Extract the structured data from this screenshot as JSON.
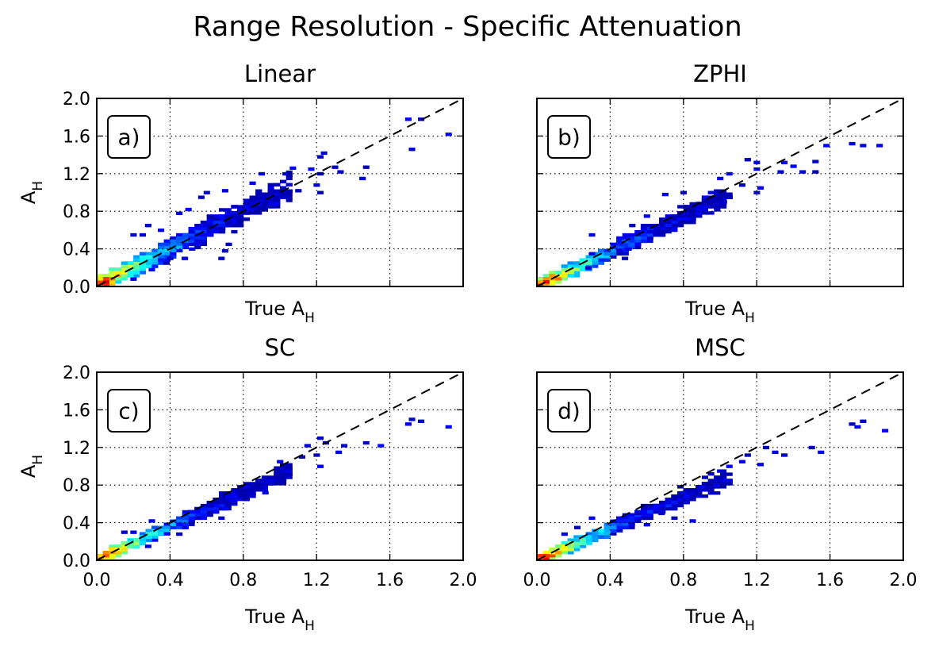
{
  "figure": {
    "suptitle": "Range Resolution - Specific Attenuation"
  },
  "chart_data": [
    {
      "type": "heatmap",
      "title": "Linear",
      "panel_label": "a)",
      "xlabel": "True A",
      "xlabel_sub": "H",
      "ylabel": "A",
      "ylabel_sub": "H",
      "xlim": [
        0,
        2.0
      ],
      "ylim": [
        0,
        2.0
      ],
      "xticks": [
        "0.0",
        "0.4",
        "0.8",
        "1.2",
        "1.6",
        "2.0"
      ],
      "yticks": [
        "0.0",
        "0.4",
        "0.8",
        "1.2",
        "1.6",
        "2.0"
      ],
      "show_xtick_labels": false,
      "show_ytick_labels": true,
      "show_ylabel": true,
      "grid": true,
      "reference_line": "y = x (dashed)",
      "colormap": "jet",
      "core": {
        "slope": 1.0,
        "spread": 0.11
      },
      "outliers": [
        [
          1.7,
          1.78
        ],
        [
          1.77,
          1.78
        ],
        [
          1.92,
          1.62
        ],
        [
          1.72,
          1.46
        ],
        [
          1.24,
          1.42
        ],
        [
          1.22,
          1.38
        ],
        [
          1.3,
          1.27
        ],
        [
          1.33,
          1.22
        ],
        [
          1.47,
          1.27
        ],
        [
          1.45,
          1.15
        ],
        [
          1.22,
          1.2
        ],
        [
          1.17,
          1.25
        ],
        [
          1.07,
          1.26
        ],
        [
          1.03,
          1.2
        ],
        [
          0.9,
          1.2
        ],
        [
          0.85,
          1.1
        ],
        [
          0.95,
          1.05
        ],
        [
          1.1,
          1.02
        ],
        [
          1.22,
          1.0
        ],
        [
          1.2,
          1.08
        ],
        [
          0.7,
          1.02
        ],
        [
          0.57,
          0.95
        ],
        [
          0.6,
          1.0
        ],
        [
          0.5,
          0.82
        ],
        [
          0.45,
          0.78
        ],
        [
          0.28,
          0.65
        ],
        [
          0.25,
          0.55
        ],
        [
          0.2,
          0.55
        ],
        [
          0.62,
          0.55
        ],
        [
          0.7,
          0.38
        ],
        [
          0.68,
          0.3
        ],
        [
          0.52,
          0.4
        ],
        [
          0.48,
          0.3
        ],
        [
          0.4,
          0.3
        ],
        [
          0.38,
          0.25
        ],
        [
          0.3,
          0.18
        ],
        [
          0.2,
          0.08
        ],
        [
          0.35,
          0.6
        ],
        [
          0.72,
          0.45
        ],
        [
          0.98,
          0.88
        ],
        [
          0.9,
          0.96
        ]
      ]
    },
    {
      "type": "heatmap",
      "title": "ZPHI",
      "panel_label": "b)",
      "xlabel": "True A",
      "xlabel_sub": "H",
      "ylabel": "",
      "ylabel_sub": "",
      "xlim": [
        0,
        2.0
      ],
      "ylim": [
        0,
        2.0
      ],
      "xticks": [
        "0.0",
        "0.4",
        "0.8",
        "1.2",
        "1.6",
        "2.0"
      ],
      "yticks": [
        "0.0",
        "0.4",
        "0.8",
        "1.2",
        "1.6",
        "2.0"
      ],
      "show_xtick_labels": false,
      "show_ytick_labels": false,
      "show_ylabel": false,
      "grid": true,
      "reference_line": "y = x (dashed)",
      "colormap": "jet",
      "core": {
        "slope": 0.92,
        "spread": 0.08
      },
      "outliers": [
        [
          1.72,
          1.52
        ],
        [
          1.78,
          1.5
        ],
        [
          1.87,
          1.5
        ],
        [
          1.58,
          1.5
        ],
        [
          1.52,
          1.33
        ],
        [
          1.4,
          1.28
        ],
        [
          1.35,
          1.32
        ],
        [
          1.45,
          1.22
        ],
        [
          1.52,
          1.22
        ],
        [
          1.33,
          1.22
        ],
        [
          1.2,
          1.32
        ],
        [
          1.15,
          1.35
        ],
        [
          1.2,
          1.25
        ],
        [
          1.05,
          1.2
        ],
        [
          1.0,
          1.15
        ],
        [
          1.12,
          1.08
        ],
        [
          1.22,
          1.05
        ],
        [
          1.2,
          1.0
        ],
        [
          0.95,
          1.0
        ],
        [
          0.92,
          0.95
        ],
        [
          0.8,
          1.0
        ],
        [
          0.7,
          0.98
        ],
        [
          1.02,
          0.9
        ],
        [
          0.85,
          0.88
        ],
        [
          0.6,
          0.75
        ],
        [
          0.52,
          0.65
        ],
        [
          0.3,
          0.55
        ],
        [
          0.5,
          0.4
        ],
        [
          0.48,
          0.3
        ],
        [
          0.3,
          0.35
        ],
        [
          0.65,
          0.55
        ],
        [
          0.75,
          0.6
        ],
        [
          0.88,
          0.78
        ],
        [
          0.82,
          0.72
        ],
        [
          0.28,
          0.2
        ]
      ]
    },
    {
      "type": "heatmap",
      "title": "SC",
      "panel_label": "c)",
      "xlabel": "True A",
      "xlabel_sub": "H",
      "ylabel": "A",
      "ylabel_sub": "H",
      "xlim": [
        0,
        2.0
      ],
      "ylim": [
        0,
        2.0
      ],
      "xticks": [
        "0.0",
        "0.4",
        "0.8",
        "1.2",
        "1.6",
        "2.0"
      ],
      "yticks": [
        "0.0",
        "0.4",
        "0.8",
        "1.2",
        "1.6",
        "2.0"
      ],
      "show_xtick_labels": true,
      "show_ytick_labels": true,
      "show_ylabel": true,
      "grid": true,
      "reference_line": "y = x (dashed)",
      "colormap": "jet",
      "core": {
        "slope": 0.9,
        "spread": 0.07
      },
      "outliers": [
        [
          1.72,
          1.5
        ],
        [
          1.77,
          1.48
        ],
        [
          1.92,
          1.42
        ],
        [
          1.7,
          1.45
        ],
        [
          1.55,
          1.22
        ],
        [
          1.47,
          1.25
        ],
        [
          1.35,
          1.22
        ],
        [
          1.32,
          1.15
        ],
        [
          1.22,
          1.3
        ],
        [
          1.25,
          1.25
        ],
        [
          1.15,
          1.22
        ],
        [
          1.2,
          1.12
        ],
        [
          1.12,
          1.1
        ],
        [
          1.0,
          1.05
        ],
        [
          1.05,
          0.95
        ],
        [
          1.22,
          1.0
        ],
        [
          1.0,
          0.85
        ],
        [
          0.95,
          0.82
        ],
        [
          0.85,
          0.8
        ],
        [
          0.92,
          0.72
        ],
        [
          0.75,
          0.6
        ],
        [
          0.7,
          0.55
        ],
        [
          0.68,
          0.45
        ],
        [
          0.55,
          0.45
        ],
        [
          0.3,
          0.42
        ],
        [
          0.2,
          0.3
        ],
        [
          0.15,
          0.3
        ],
        [
          0.45,
          0.28
        ],
        [
          0.28,
          0.15
        ]
      ]
    },
    {
      "type": "heatmap",
      "title": "MSC",
      "panel_label": "d)",
      "xlabel": "True A",
      "xlabel_sub": "H",
      "ylabel": "",
      "ylabel_sub": "",
      "xlim": [
        0,
        2.0
      ],
      "ylim": [
        0,
        2.0
      ],
      "xticks": [
        "0.0",
        "0.4",
        "0.8",
        "1.2",
        "1.6",
        "2.0"
      ],
      "yticks": [
        "0.0",
        "0.4",
        "0.8",
        "1.2",
        "1.6",
        "2.0"
      ],
      "show_xtick_labels": true,
      "show_ytick_labels": false,
      "show_ylabel": false,
      "grid": true,
      "reference_line": "y = x (dashed)",
      "colormap": "jet",
      "core": {
        "slope": 0.84,
        "spread": 0.07
      },
      "outliers": [
        [
          1.72,
          1.45
        ],
        [
          1.78,
          1.48
        ],
        [
          1.9,
          1.38
        ],
        [
          1.75,
          1.42
        ],
        [
          1.55,
          1.15
        ],
        [
          1.5,
          1.2
        ],
        [
          1.3,
          1.15
        ],
        [
          1.35,
          1.12
        ],
        [
          1.25,
          1.2
        ],
        [
          1.15,
          1.12
        ],
        [
          1.12,
          1.05
        ],
        [
          1.22,
          1.02
        ],
        [
          1.05,
          1.0
        ],
        [
          1.0,
          0.95
        ],
        [
          0.95,
          0.92
        ],
        [
          1.05,
          0.85
        ],
        [
          0.98,
          0.8
        ],
        [
          0.9,
          0.78
        ],
        [
          0.8,
          0.72
        ],
        [
          0.72,
          0.65
        ],
        [
          0.68,
          0.5
        ],
        [
          0.75,
          0.45
        ],
        [
          0.55,
          0.5
        ],
        [
          0.3,
          0.45
        ],
        [
          0.22,
          0.35
        ],
        [
          0.15,
          0.28
        ],
        [
          0.6,
          0.38
        ],
        [
          0.85,
          0.42
        ]
      ]
    }
  ]
}
